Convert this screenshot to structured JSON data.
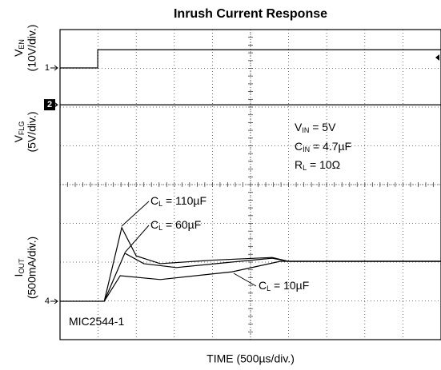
{
  "chart_data": {
    "type": "line",
    "title": "Inrush Current Response",
    "x_label": "TIME (500µs/div.)",
    "xlim": [
      0,
      10
    ],
    "ylim": [
      0,
      8
    ],
    "grid": true,
    "color": "#000000",
    "y_labels": [
      {
        "main": "V",
        "sub": "EN",
        "scale": "(10V/div.)"
      },
      {
        "main": "V",
        "sub": "FLG",
        "scale": "(5V/div.)"
      },
      {
        "main": "I",
        "sub": "OUT",
        "scale": "(500mA/div.)"
      }
    ],
    "series": [
      {
        "channel": "1",
        "x": [
          0,
          0.99,
          0.99,
          10
        ],
        "values": [
          7.01,
          7.01,
          7.48,
          7.48
        ]
      },
      {
        "channel": "2",
        "x": [
          0,
          10
        ],
        "values": [
          6.06,
          6.06
        ]
      },
      {
        "channel": "4",
        "x": [
          0,
          1.16,
          1.62,
          2.0,
          2.63,
          4.0,
          5.57,
          6.0,
          10
        ],
        "values": [
          0.99,
          0.99,
          2.89,
          2.16,
          1.96,
          2.05,
          2.12,
          2.02,
          2.02
        ]
      },
      {
        "x": [
          1.16,
          1.7,
          2.2,
          3.05,
          4.5,
          5.57,
          6.0,
          10
        ],
        "values": [
          0.99,
          2.23,
          1.96,
          1.86,
          2.0,
          2.1,
          2.02,
          2.02
        ]
      },
      {
        "x": [
          1.16,
          1.58,
          2.63,
          4.52,
          5.78,
          10
        ],
        "values": [
          0.99,
          1.65,
          1.55,
          1.75,
          2.02,
          2.02
        ]
      }
    ],
    "annotations": [
      {
        "main": "V",
        "sub": "IN",
        "rest": " = 5V"
      },
      {
        "main": "C",
        "sub": "IN",
        "rest": " = 4.7µF"
      },
      {
        "main": "R",
        "sub": "L",
        "rest": " = 10Ω"
      },
      {
        "main": "C",
        "sub": "L",
        "rest": " = 110µF"
      },
      {
        "main": "C",
        "sub": "L",
        "rest": " = 60µF"
      },
      {
        "main": "C",
        "sub": "L",
        "rest": " = 10µF"
      },
      {
        "main": "MIC2544-1"
      }
    ]
  }
}
